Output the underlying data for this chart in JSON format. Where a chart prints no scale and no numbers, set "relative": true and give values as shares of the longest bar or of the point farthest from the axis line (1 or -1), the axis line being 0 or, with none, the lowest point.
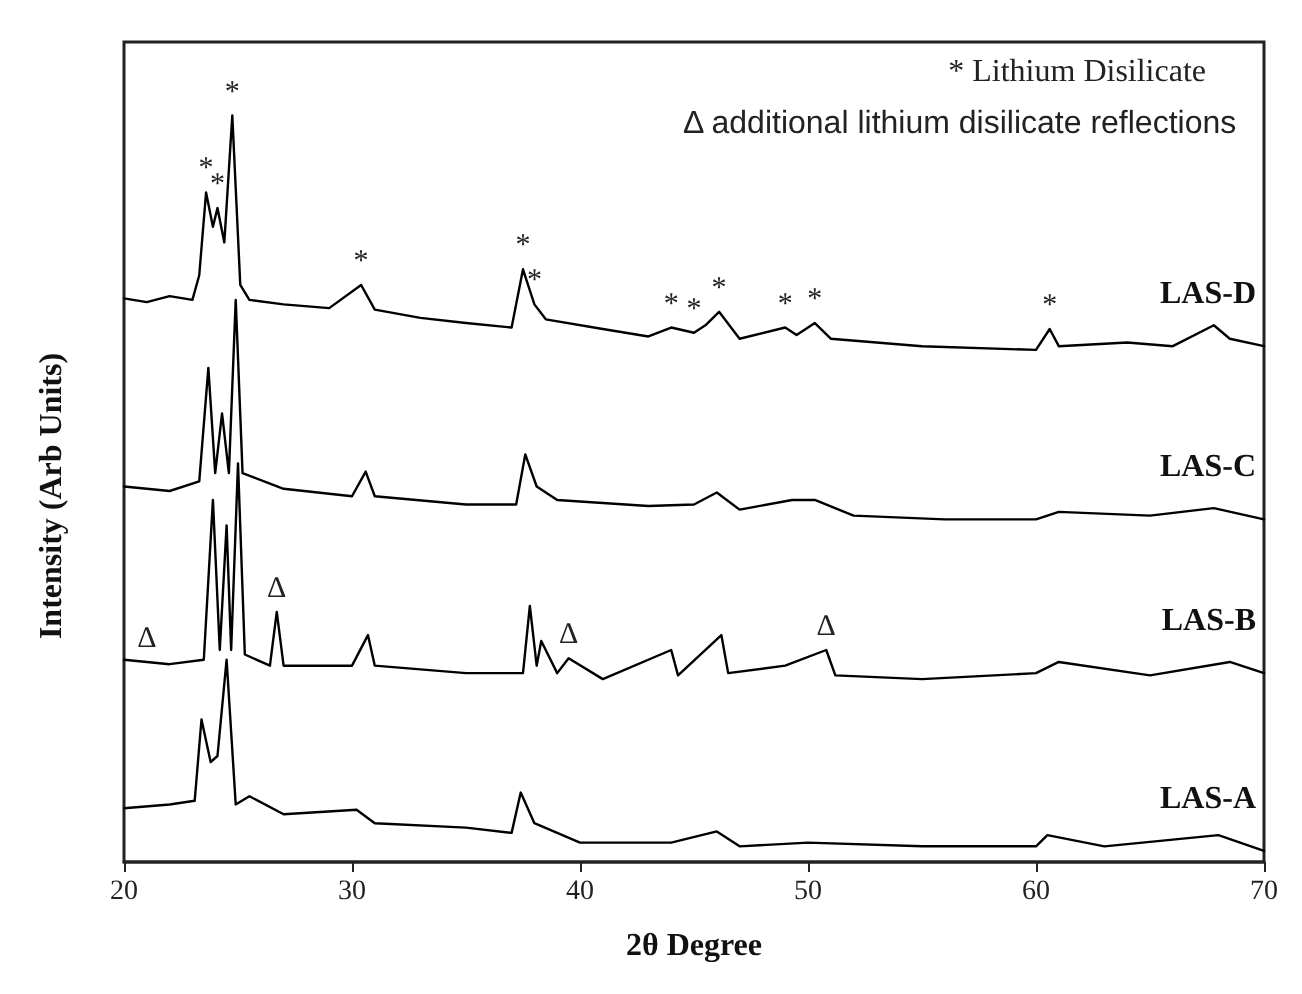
{
  "chart_data": {
    "type": "line",
    "relative": true,
    "xlabel": "2θ Degree",
    "ylabel": "Intensity (Arb Units)",
    "xlim": [
      20,
      70
    ],
    "xticks": [
      20,
      30,
      40,
      50,
      60,
      70
    ],
    "grid": false,
    "legend": false,
    "marker": "none",
    "line_style": "solid",
    "annotations": [
      "* Lithium Disilicate",
      "Δ additional lithium disilicate reflections",
      {
        "text": "*",
        "x": 23.6,
        "y": 0.897
      },
      {
        "text": "*",
        "x": 24.1,
        "y": 0.876
      },
      {
        "text": "*",
        "x": 24.75,
        "y": 1.0
      },
      {
        "text": "*",
        "x": 30.4,
        "y": 0.773
      },
      {
        "text": "*",
        "x": 37.5,
        "y": 0.794
      },
      {
        "text": "*",
        "x": 38,
        "y": 0.747
      },
      {
        "text": "*",
        "x": 44,
        "y": 0.716
      },
      {
        "text": "*",
        "x": 45,
        "y": 0.709
      },
      {
        "text": "*",
        "x": 46.1,
        "y": 0.737
      },
      {
        "text": "*",
        "x": 49,
        "y": 0.716
      },
      {
        "text": "*",
        "x": 50.3,
        "y": 0.722
      },
      {
        "text": "*",
        "x": 60.6,
        "y": 0.714
      },
      {
        "text": "Δ",
        "x": 21,
        "y": 0.268
      },
      {
        "text": "Δ",
        "x": 26.7,
        "y": 0.335
      },
      {
        "text": "Δ",
        "x": 39.5,
        "y": 0.273
      },
      {
        "text": "Δ",
        "x": 50.8,
        "y": 0.284
      }
    ],
    "series": [
      {
        "name": "LAS-D",
        "color": "#000000",
        "x": [
          20,
          21,
          22,
          23,
          23.3,
          23.6,
          23.9,
          24.1,
          24.4,
          24.75,
          25.1,
          25.5,
          27,
          29,
          30.4,
          31,
          33,
          35,
          37,
          37.5,
          38,
          38.5,
          41,
          43,
          44,
          45,
          45.5,
          46.1,
          47,
          49,
          49.5,
          50.3,
          51,
          55,
          60,
          60.6,
          61,
          64,
          66,
          67.8,
          68.5,
          70
        ],
        "values": [
          0.755,
          0.75,
          0.758,
          0.753,
          0.786,
          0.897,
          0.851,
          0.876,
          0.83,
          1.0,
          0.773,
          0.753,
          0.747,
          0.742,
          0.773,
          0.74,
          0.729,
          0.722,
          0.716,
          0.794,
          0.747,
          0.727,
          0.714,
          0.704,
          0.716,
          0.709,
          0.719,
          0.737,
          0.701,
          0.716,
          0.706,
          0.722,
          0.701,
          0.691,
          0.686,
          0.714,
          0.691,
          0.696,
          0.691,
          0.719,
          0.701,
          0.691
        ]
      },
      {
        "name": "LAS-C",
        "color": "#000000",
        "x": [
          20,
          22,
          23.3,
          23.7,
          24,
          24.3,
          24.6,
          24.9,
          25.2,
          27,
          30,
          30.6,
          31,
          35,
          37.2,
          37.6,
          38.1,
          39,
          43,
          45,
          46,
          47,
          49.3,
          50.3,
          52,
          56,
          60,
          61,
          65,
          67.8,
          70
        ],
        "values": [
          0.503,
          0.497,
          0.51,
          0.662,
          0.521,
          0.601,
          0.521,
          0.753,
          0.521,
          0.5,
          0.49,
          0.523,
          0.49,
          0.479,
          0.479,
          0.546,
          0.503,
          0.485,
          0.477,
          0.479,
          0.495,
          0.472,
          0.485,
          0.485,
          0.464,
          0.459,
          0.459,
          0.469,
          0.464,
          0.474,
          0.459
        ]
      },
      {
        "name": "LAS-B",
        "color": "#000000",
        "x": [
          20,
          21,
          22,
          23.5,
          23.9,
          24.2,
          24.5,
          24.7,
          25,
          25.3,
          26.4,
          26.7,
          27,
          30,
          30.7,
          31,
          35,
          37.5,
          37.8,
          38.1,
          38.3,
          39,
          39.5,
          41,
          44,
          44.3,
          46.2,
          46.5,
          49,
          50.8,
          51.2,
          55,
          60,
          61,
          65,
          68.5,
          70
        ],
        "values": [
          0.271,
          0.268,
          0.265,
          0.271,
          0.485,
          0.284,
          0.451,
          0.284,
          0.534,
          0.278,
          0.263,
          0.335,
          0.263,
          0.263,
          0.304,
          0.263,
          0.253,
          0.253,
          0.343,
          0.263,
          0.296,
          0.253,
          0.273,
          0.245,
          0.284,
          0.25,
          0.304,
          0.253,
          0.263,
          0.284,
          0.25,
          0.245,
          0.253,
          0.268,
          0.25,
          0.268,
          0.253
        ]
      },
      {
        "name": "LAS-A",
        "color": "#000000",
        "x": [
          20,
          22,
          23.1,
          23.4,
          23.8,
          24.1,
          24.5,
          24.9,
          25.5,
          27,
          30.2,
          31,
          35,
          37,
          37.4,
          38,
          40,
          44,
          46,
          47,
          50,
          55,
          60,
          60.5,
          63,
          68,
          70
        ],
        "values": [
          0.072,
          0.077,
          0.082,
          0.191,
          0.134,
          0.142,
          0.271,
          0.077,
          0.088,
          0.064,
          0.07,
          0.052,
          0.046,
          0.039,
          0.093,
          0.052,
          0.026,
          0.026,
          0.041,
          0.021,
          0.026,
          0.021,
          0.021,
          0.036,
          0.021,
          0.036,
          0.015
        ]
      }
    ]
  }
}
